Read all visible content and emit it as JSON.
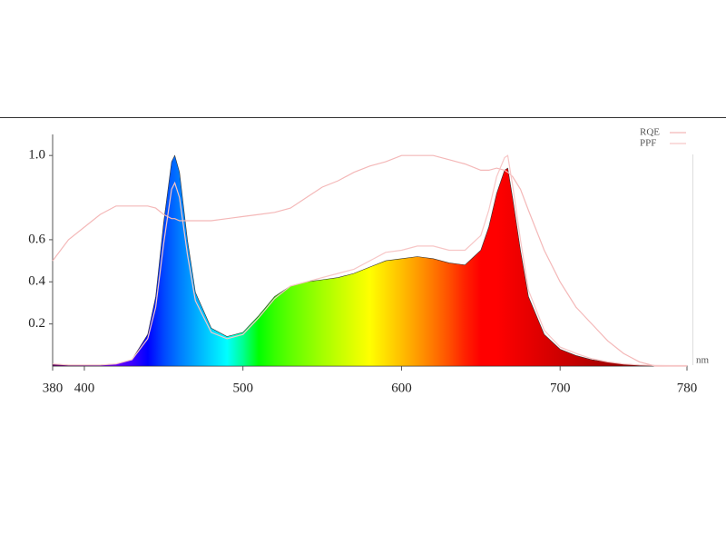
{
  "chart_data": {
    "type": "area",
    "x": [
      380,
      390,
      400,
      410,
      420,
      430,
      440,
      445,
      450,
      455,
      457,
      460,
      465,
      470,
      480,
      490,
      500,
      510,
      520,
      530,
      540,
      550,
      560,
      570,
      580,
      590,
      600,
      610,
      620,
      630,
      640,
      650,
      655,
      660,
      665,
      667,
      670,
      675,
      680,
      690,
      700,
      710,
      720,
      730,
      740,
      750,
      760,
      770,
      780
    ],
    "series": [
      {
        "values": [
          0.01,
          0.005,
          0.005,
          0.005,
          0.01,
          0.03,
          0.15,
          0.33,
          0.68,
          0.97,
          1.0,
          0.92,
          0.6,
          0.35,
          0.18,
          0.14,
          0.16,
          0.24,
          0.33,
          0.38,
          0.4,
          0.41,
          0.42,
          0.44,
          0.47,
          0.5,
          0.51,
          0.52,
          0.51,
          0.49,
          0.48,
          0.55,
          0.66,
          0.82,
          0.93,
          0.94,
          0.8,
          0.55,
          0.33,
          0.15,
          0.08,
          0.05,
          0.03,
          0.02,
          0.01,
          0.005,
          0.003,
          0.002,
          0.002
        ]
      },
      {
        "name": "RQE",
        "color": "#f4b8b8",
        "values": [
          0.5,
          0.6,
          0.66,
          0.72,
          0.76,
          0.76,
          0.76,
          0.75,
          0.72,
          0.7,
          0.7,
          0.69,
          0.69,
          0.69,
          0.69,
          0.7,
          0.71,
          0.72,
          0.73,
          0.75,
          0.8,
          0.85,
          0.88,
          0.92,
          0.95,
          0.97,
          1.0,
          1.0,
          1.0,
          0.98,
          0.96,
          0.93,
          0.93,
          0.94,
          0.93,
          0.92,
          0.9,
          0.84,
          0.74,
          0.55,
          0.4,
          0.28,
          0.2,
          0.12,
          0.06,
          0.02,
          0.0,
          0.0,
          0.0
        ]
      },
      {
        "name": "PPF",
        "color": "#f7c6c6",
        "values": [
          0.01,
          0.005,
          0.005,
          0.005,
          0.01,
          0.03,
          0.13,
          0.28,
          0.58,
          0.84,
          0.87,
          0.8,
          0.53,
          0.31,
          0.16,
          0.13,
          0.15,
          0.23,
          0.32,
          0.38,
          0.4,
          0.42,
          0.44,
          0.46,
          0.5,
          0.54,
          0.55,
          0.57,
          0.57,
          0.55,
          0.55,
          0.62,
          0.74,
          0.9,
          0.99,
          1.0,
          0.86,
          0.6,
          0.36,
          0.17,
          0.09,
          0.06,
          0.035,
          0.02,
          0.01,
          0.005,
          0.003,
          0.002,
          0.002
        ]
      }
    ],
    "xlim": [
      380,
      780
    ],
    "xticks": [
      380,
      400,
      500,
      600,
      700,
      780
    ],
    "ylim": [
      0,
      1.1
    ],
    "yticks": [
      0.2,
      0.4,
      0.6,
      {
        "value": 1,
        "label": "1.0"
      }
    ],
    "xlabel": "nm",
    "legend": "upper right"
  }
}
